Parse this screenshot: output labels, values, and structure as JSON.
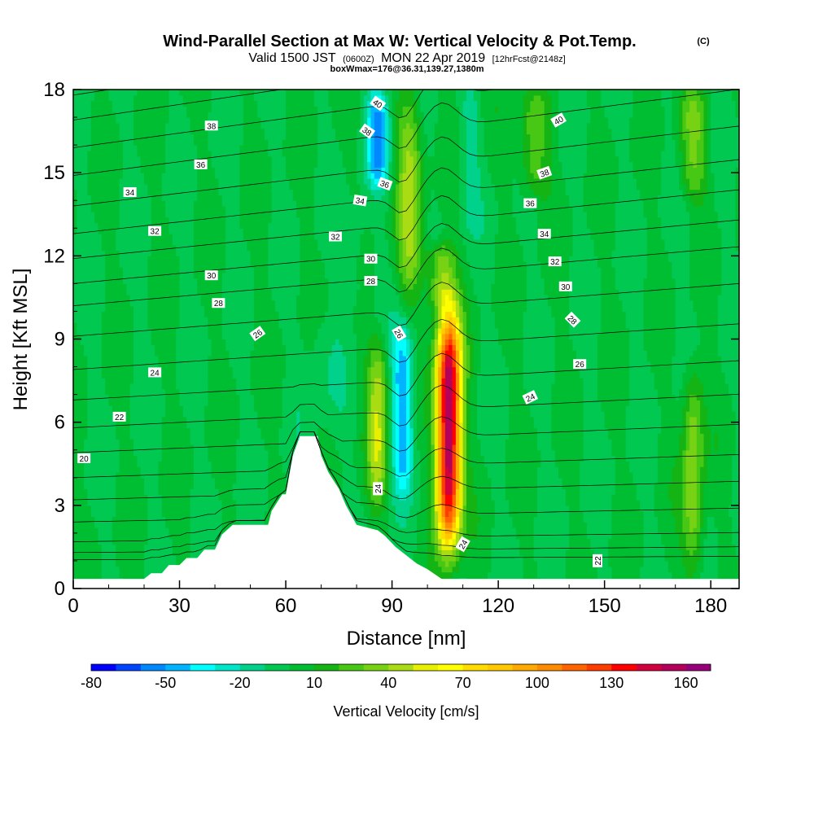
{
  "chart_data": {
    "type": "heatmap",
    "title": "Wind-Parallel Section at Max W: Vertical Velocity & Pot.Temp.",
    "title_mark": "(C)",
    "subtitle_parts": [
      "Valid 1500 JST",
      "(0600Z)",
      "MON 22 Apr 2019",
      "[12hrFcst@2148z]"
    ],
    "subtitle2": "boxWmax=176@36.31,139.27,1380m",
    "xlabel": "Distance [nm]",
    "ylabel": "Height [Kft MSL]",
    "xlim": [
      0,
      188
    ],
    "ylim": [
      0,
      18
    ],
    "xticks": [
      0,
      30,
      60,
      90,
      120,
      150,
      180
    ],
    "yticks": [
      0,
      3,
      6,
      9,
      12,
      15,
      18
    ],
    "colorbar": {
      "label": "Vertical Velocity [cm/s]",
      "min": -80,
      "max": 170,
      "step": 10,
      "tick_values": [
        -80,
        -50,
        -20,
        10,
        40,
        70,
        100,
        130,
        160
      ],
      "colors": [
        "#0000ff",
        "#0044ff",
        "#0088ff",
        "#00b4ff",
        "#00ffff",
        "#00e6c8",
        "#00d28c",
        "#00c850",
        "#00be32",
        "#14b414",
        "#46c814",
        "#78d214",
        "#aadc14",
        "#e6f000",
        "#ffff00",
        "#ffdc00",
        "#ffc800",
        "#ffaa00",
        "#ff8c00",
        "#ff6400",
        "#ff3c00",
        "#ff0000",
        "#d2003c",
        "#b4005a",
        "#960078"
      ]
    },
    "terrain": [
      [
        0,
        0.35
      ],
      [
        20,
        0.35
      ],
      [
        22,
        0.55
      ],
      [
        25,
        0.55
      ],
      [
        27,
        0.85
      ],
      [
        30,
        0.85
      ],
      [
        32,
        1.1
      ],
      [
        35,
        1.1
      ],
      [
        37,
        1.4
      ],
      [
        40,
        1.4
      ],
      [
        42,
        1.95
      ],
      [
        45,
        2.3
      ],
      [
        55,
        2.3
      ],
      [
        56,
        2.8
      ],
      [
        59,
        3.4
      ],
      [
        60,
        3.4
      ],
      [
        62,
        4.8
      ],
      [
        64,
        5.5
      ],
      [
        69,
        5.5
      ],
      [
        70,
        4.8
      ],
      [
        72,
        4.2
      ],
      [
        75,
        3.6
      ],
      [
        77,
        3.0
      ],
      [
        80,
        2.3
      ],
      [
        86,
        2.1
      ],
      [
        88,
        1.9
      ],
      [
        91,
        1.5
      ],
      [
        94,
        1.2
      ],
      [
        97,
        0.9
      ],
      [
        100,
        0.7
      ],
      [
        104,
        0.35
      ],
      [
        188,
        0.35
      ]
    ],
    "w_features": [
      {
        "x": 86,
        "y0": 3,
        "y1": 9,
        "w": 3,
        "value": 45
      },
      {
        "x": 93,
        "y0": 3.5,
        "y1": 9.5,
        "w": 3,
        "value": -50
      },
      {
        "x": 95,
        "y0": 10.5,
        "y1": 18,
        "w": 3.5,
        "value": 40
      },
      {
        "x": 106,
        "y0": 1.5,
        "y1": 10,
        "w": 3.5,
        "value": 165
      },
      {
        "x": 104,
        "y0": 10,
        "y1": 12.5,
        "w": 4,
        "value": 40
      },
      {
        "x": 86,
        "y0": 14.5,
        "y1": 18,
        "w": 3,
        "value": -50
      },
      {
        "x": 112,
        "y0": 13,
        "y1": 18,
        "w": 2.5,
        "value": -15
      },
      {
        "x": 130,
        "y0": 14,
        "y1": 18,
        "w": 4,
        "value": 30
      },
      {
        "x": 175,
        "y0": 14,
        "y1": 18,
        "w": 4,
        "value": 30
      },
      {
        "x": 70,
        "y0": 6,
        "y1": 10,
        "w": 5,
        "value": -10
      },
      {
        "x": 80,
        "y0": 10,
        "y1": 14,
        "w": 3,
        "value": -10
      },
      {
        "x": 175,
        "y0": 0.4,
        "y1": 8,
        "w": 3,
        "value": 40
      }
    ],
    "isentropes": [
      {
        "y0": 0.6,
        "shape": "near-flat"
      },
      {
        "y0": 1.0,
        "shape": "near-flat"
      },
      {
        "y0": 1.6,
        "shape": "near-flat"
      },
      {
        "y0": 2.4,
        "shape": "near-flat"
      },
      {
        "y0": 3.2,
        "shape": "near-flat"
      },
      {
        "y0": 4.0,
        "shape": "near-flat"
      },
      {
        "y0": 4.9,
        "shape": "near-flat"
      },
      {
        "y0": 5.8,
        "shape": "near-flat"
      },
      {
        "y0": 6.8,
        "shape": "near-flat"
      },
      {
        "y0": 7.9,
        "shape": "near-flat"
      },
      {
        "y0": 9.1,
        "shape": "near-flat"
      },
      {
        "y0": 10.2,
        "shape": "near-flat"
      },
      {
        "y0": 11.0,
        "shape": "near-flat"
      },
      {
        "y0": 11.9,
        "shape": "near-flat"
      },
      {
        "y0": 12.8,
        "shape": "near-flat"
      },
      {
        "y0": 13.8,
        "shape": "near-flat"
      },
      {
        "y0": 14.9,
        "shape": "near-flat"
      },
      {
        "y0": 15.9,
        "shape": "near-flat"
      },
      {
        "y0": 16.9,
        "shape": "near-flat"
      },
      {
        "y0": 17.8,
        "shape": "near-flat"
      }
    ],
    "contour_labels": [
      {
        "text": "38",
        "x": 39,
        "y": 16.7,
        "angle": 0
      },
      {
        "text": "36",
        "x": 36,
        "y": 15.3,
        "angle": 0
      },
      {
        "text": "34",
        "x": 16,
        "y": 14.3,
        "angle": 0
      },
      {
        "text": "32",
        "x": 23,
        "y": 12.9,
        "angle": 0
      },
      {
        "text": "30",
        "x": 39,
        "y": 11.3,
        "angle": 0
      },
      {
        "text": "28",
        "x": 41,
        "y": 10.3,
        "angle": 0
      },
      {
        "text": "26",
        "x": 52,
        "y": 9.2,
        "angle": -35
      },
      {
        "text": "24",
        "x": 23,
        "y": 7.8,
        "angle": 0
      },
      {
        "text": "22",
        "x": 13,
        "y": 6.2,
        "angle": 0
      },
      {
        "text": "20",
        "x": 3,
        "y": 4.7,
        "angle": 0
      },
      {
        "text": "40",
        "x": 86,
        "y": 17.5,
        "angle": 35
      },
      {
        "text": "38",
        "x": 83,
        "y": 16.5,
        "angle": 35
      },
      {
        "text": "36",
        "x": 88,
        "y": 14.6,
        "angle": 20
      },
      {
        "text": "34",
        "x": 81,
        "y": 14.0,
        "angle": 10
      },
      {
        "text": "32",
        "x": 74,
        "y": 12.7,
        "angle": 0
      },
      {
        "text": "30",
        "x": 84,
        "y": 11.9,
        "angle": 0
      },
      {
        "text": "28",
        "x": 84,
        "y": 11.1,
        "angle": 0
      },
      {
        "text": "26",
        "x": 92,
        "y": 9.2,
        "angle": 60
      },
      {
        "text": "24",
        "x": 86,
        "y": 3.6,
        "angle": -90
      },
      {
        "text": "24",
        "x": 110,
        "y": 1.6,
        "angle": -60
      },
      {
        "text": "40",
        "x": 137,
        "y": 16.9,
        "angle": -30
      },
      {
        "text": "38",
        "x": 133,
        "y": 15.0,
        "angle": -20
      },
      {
        "text": "36",
        "x": 129,
        "y": 13.9,
        "angle": 0
      },
      {
        "text": "34",
        "x": 133,
        "y": 12.8,
        "angle": 0
      },
      {
        "text": "32",
        "x": 136,
        "y": 11.8,
        "angle": 0
      },
      {
        "text": "30",
        "x": 139,
        "y": 10.9,
        "angle": 0
      },
      {
        "text": "28",
        "x": 141,
        "y": 9.7,
        "angle": 45
      },
      {
        "text": "26",
        "x": 143,
        "y": 8.1,
        "angle": 0
      },
      {
        "text": "24",
        "x": 129,
        "y": 6.9,
        "angle": -25
      },
      {
        "text": "22",
        "x": 148,
        "y": 1.0,
        "angle": -90
      }
    ]
  }
}
